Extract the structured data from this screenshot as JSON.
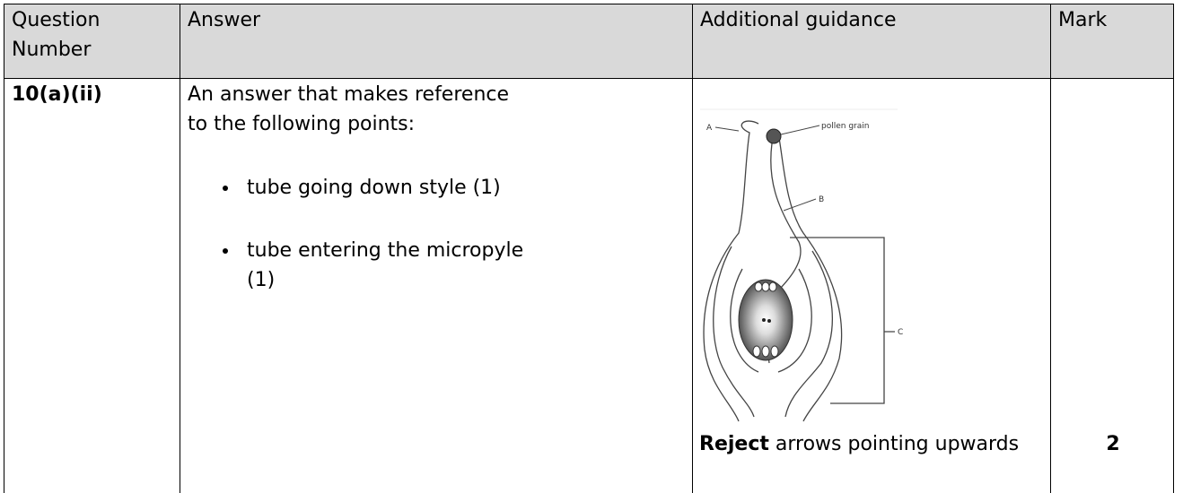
{
  "table": {
    "header": [
      "Question Number",
      "Answer",
      "Additional guidance",
      "Mark"
    ],
    "row": {
      "question": "10(a)(ii)",
      "answer_intro": "An answer that makes reference to the following points:",
      "bullets": [
        "tube going down style (1)",
        "tube entering the micropyle (1)"
      ],
      "diagram_labels": {
        "a": "A",
        "pollen": "pollen grain",
        "b": "B",
        "c": "C"
      },
      "guidance_bold": "Reject",
      "guidance_rest": "arrows pointing upwards",
      "mark": "2"
    }
  }
}
